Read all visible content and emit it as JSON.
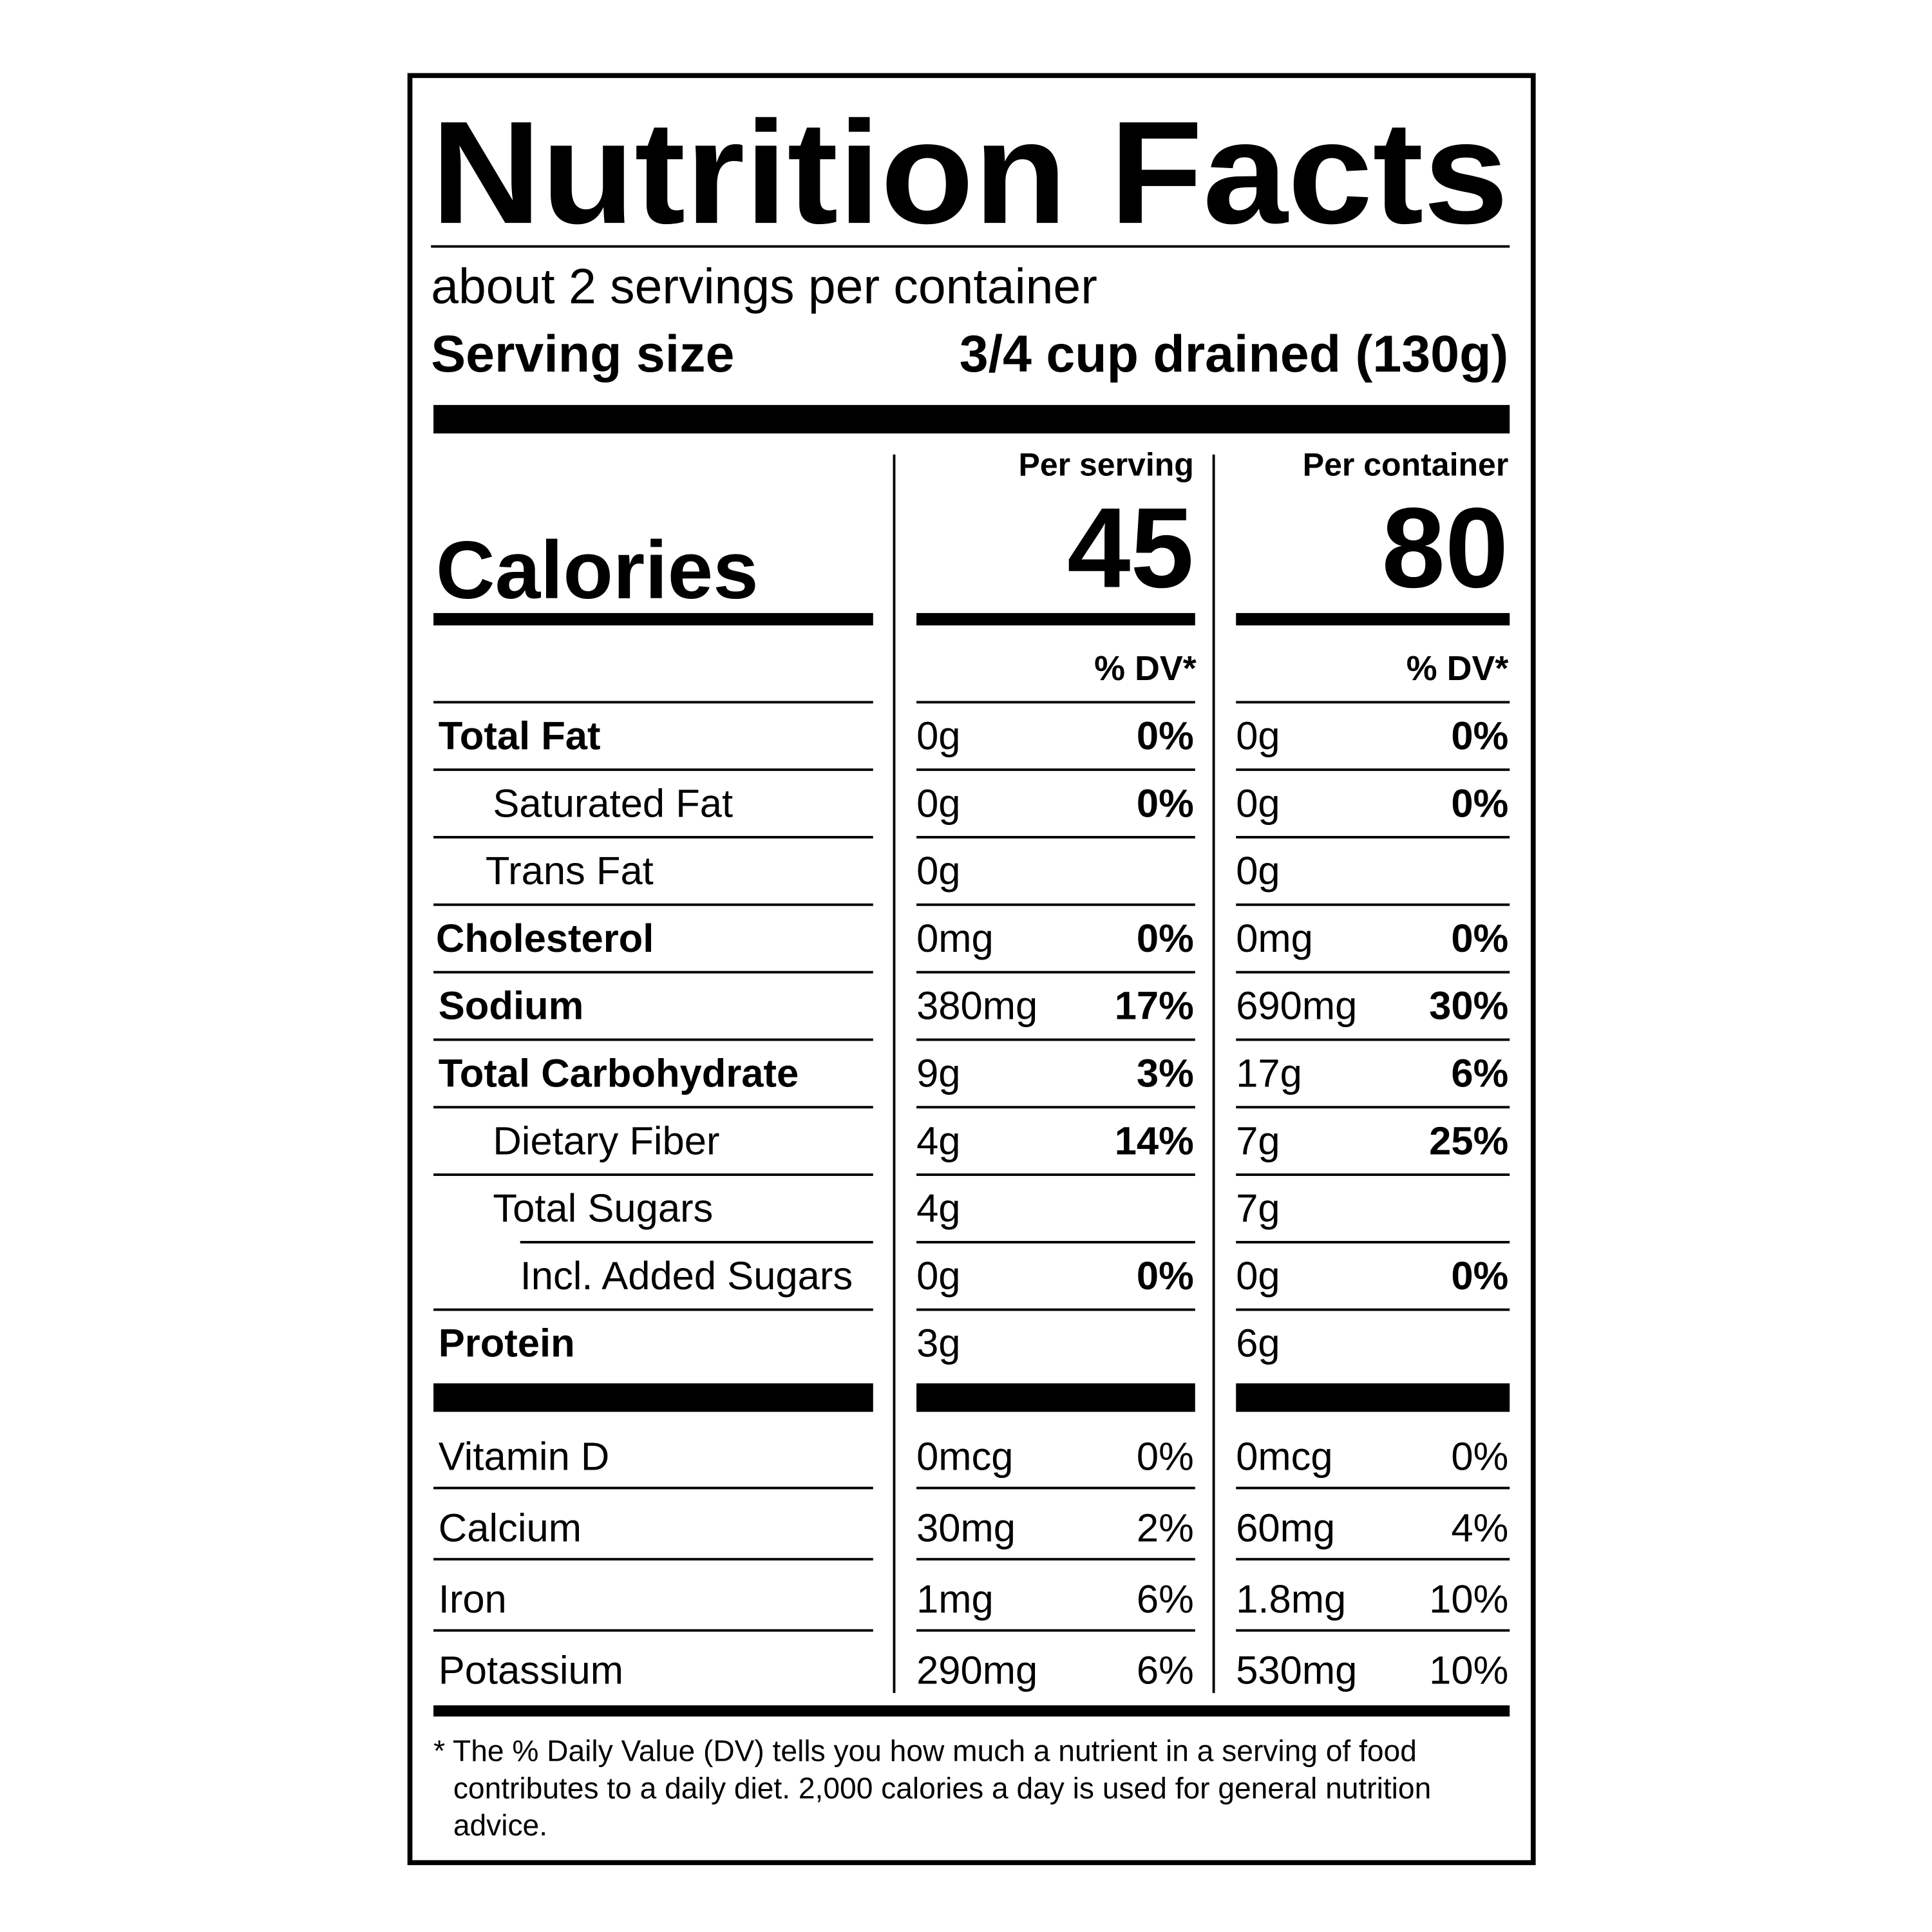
{
  "header": {
    "title": "Nutrition Facts",
    "servings": "about 2 servings per container",
    "serving_size_label": "Serving size",
    "serving_size_value": "3/4 cup drained (130g)"
  },
  "columns": {
    "per_serving": "Per serving",
    "per_container": "Per container",
    "calories_label": "Calories",
    "calories_per_serving": "45",
    "calories_per_container": "80",
    "dv_per_serving": "% DV*",
    "dv_per_container": "% DV*"
  },
  "nutrients": [
    {
      "name": "Total Fat",
      "per_serving": {
        "amount": "0g",
        "dv": "0%"
      },
      "per_container": {
        "amount": "0g",
        "dv": "0%"
      }
    },
    {
      "name": "Saturated Fat",
      "per_serving": {
        "amount": "0g",
        "dv": "0%"
      },
      "per_container": {
        "amount": "0g",
        "dv": "0%"
      }
    },
    {
      "name": "Trans Fat",
      "per_serving": {
        "amount": "0g"
      },
      "per_container": {
        "amount": "0g"
      }
    },
    {
      "name": "Cholesterol",
      "per_serving": {
        "amount": "0mg",
        "dv": "0%"
      },
      "per_container": {
        "amount": "0mg",
        "dv": "0%"
      }
    },
    {
      "name": "Sodium",
      "per_serving": {
        "amount": "380mg",
        "dv": "17%"
      },
      "per_container": {
        "amount": "690mg",
        "dv": "30%"
      }
    },
    {
      "name": "Total Carbohydrate",
      "per_serving": {
        "amount": "9g",
        "dv": "3%"
      },
      "per_container": {
        "amount": "17g",
        "dv": "6%"
      }
    },
    {
      "name": "Dietary Fiber",
      "per_serving": {
        "amount": "4g",
        "dv": "14%"
      },
      "per_container": {
        "amount": "7g",
        "dv": "25%"
      }
    },
    {
      "name": "Total Sugars",
      "per_serving": {
        "amount": "4g"
      },
      "per_container": {
        "amount": "7g"
      }
    },
    {
      "name": "Incl. Added Sugars",
      "per_serving": {
        "amount": "0g",
        "dv": "0%"
      },
      "per_container": {
        "amount": "0g",
        "dv": "0%"
      }
    },
    {
      "name": "Protein",
      "per_serving": {
        "amount": "3g"
      },
      "per_container": {
        "amount": "6g"
      }
    }
  ],
  "vitamins": [
    {
      "name": "Vitamin D",
      "per_serving": {
        "amount": "0mcg",
        "dv": "0%"
      },
      "per_container": {
        "amount": "0mcg",
        "dv": "0%"
      }
    },
    {
      "name": "Calcium",
      "per_serving": {
        "amount": "30mg",
        "dv": "2%"
      },
      "per_container": {
        "amount": "60mg",
        "dv": "4%"
      }
    },
    {
      "name": "Iron",
      "per_serving": {
        "amount": "1mg",
        "dv": "6%"
      },
      "per_container": {
        "amount": "1.8mg",
        "dv": "10%"
      }
    },
    {
      "name": "Potassium",
      "per_serving": {
        "amount": "290mg",
        "dv": "6%"
      },
      "per_container": {
        "amount": "530mg",
        "dv": "10%"
      }
    }
  ],
  "footnote": [
    "* The % Daily Value (DV) tells you how much a nutrient in a serving of food",
    "contributes to a daily diet. 2,000 calories a day is used for general nutrition",
    "advice."
  ]
}
